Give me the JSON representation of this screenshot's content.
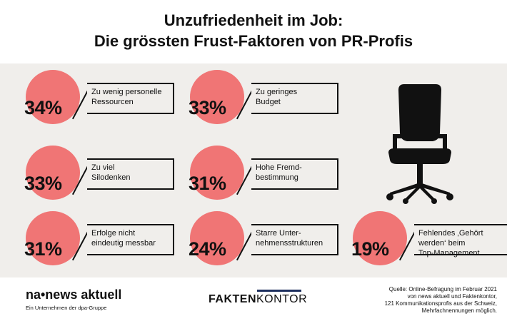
{
  "title_line1": "Unzufriedenheit im Job:",
  "title_line2": "Die grössten Frust-Faktoren von PR-Profis",
  "colors": {
    "circle": "#f07575",
    "panel": "#f0eeeb",
    "text": "#111111",
    "brand_bar": "#1d2f5e"
  },
  "chart_data": {
    "type": "table",
    "items": [
      {
        "value": 34,
        "label": "34%",
        "text": "Zu wenig personelle\nRessourcen"
      },
      {
        "value": 33,
        "label": "33%",
        "text": "Zu geringes\nBudget"
      },
      {
        "value": 33,
        "label": "33%",
        "text": "Zu viel\nSilodenken"
      },
      {
        "value": 31,
        "label": "31%",
        "text": "Hohe Fremd-\nbestimmung"
      },
      {
        "value": 31,
        "label": "31%",
        "text": "Erfolge nicht\neindeutig messbar"
      },
      {
        "value": 24,
        "label": "24%",
        "text": "Starre Unter-\nnehmensstrukturen"
      },
      {
        "value": 19,
        "label": "19%",
        "text": "Fehlendes ‚Gehört\nwerden‘ beim\nTop-Management"
      }
    ]
  },
  "chair_icon": "office-chair-icon",
  "footer": {
    "brand1": "na•news aktuell",
    "brand1_sub": "Ein Unternehmen der dpa-Gruppe",
    "brand2_bold": "FAKTEN",
    "brand2_light": "KONTOR",
    "source": "Quelle: Online-Befragung im Februar 2021\nvon news aktuell und Faktenkontor,\n121 Kommunikationsprofis aus der Schweiz,\nMehrfachnennungen möglich."
  }
}
